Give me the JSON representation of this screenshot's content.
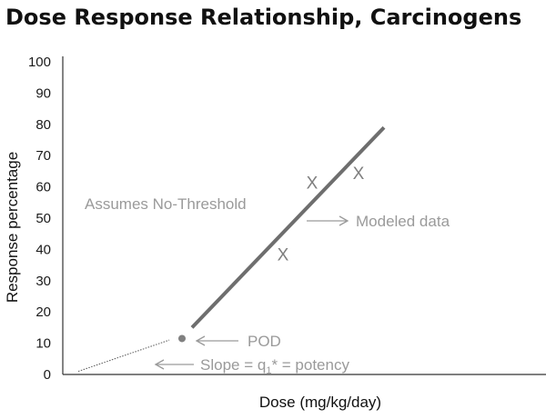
{
  "chart_data": {
    "type": "line",
    "title": "Dose Response Relationship, Carcinogens",
    "xlabel": "Dose (mg/kg/day)",
    "ylabel": "Response percentage",
    "ylim": [
      0,
      100
    ],
    "yticks": [
      "0",
      "10",
      "20",
      "30",
      "40",
      "50",
      "60",
      "70",
      "80",
      "90",
      "100"
    ],
    "grid": false,
    "modeled_line": {
      "name": "Modeled data",
      "start": {
        "y": 15
      },
      "end": {
        "y": 79
      }
    },
    "extrapolation": {
      "name": "Slope = q1* = potency",
      "start": {
        "y": 1
      },
      "end": {
        "y": 11
      }
    },
    "pod_point": {
      "label": "POD",
      "y": 11.5
    },
    "observations": [
      {
        "marker": "X",
        "y": 38.5
      },
      {
        "marker": "X",
        "y": 61.5
      },
      {
        "marker": "X",
        "y": 64.5
      }
    ],
    "annotations": {
      "assumes": "Assumes No-Threshold",
      "modeled": "Modeled data",
      "pod": "POD",
      "slope_prefix": "Slope = q",
      "slope_sub": "1",
      "slope_suffix": "* = potency"
    }
  }
}
